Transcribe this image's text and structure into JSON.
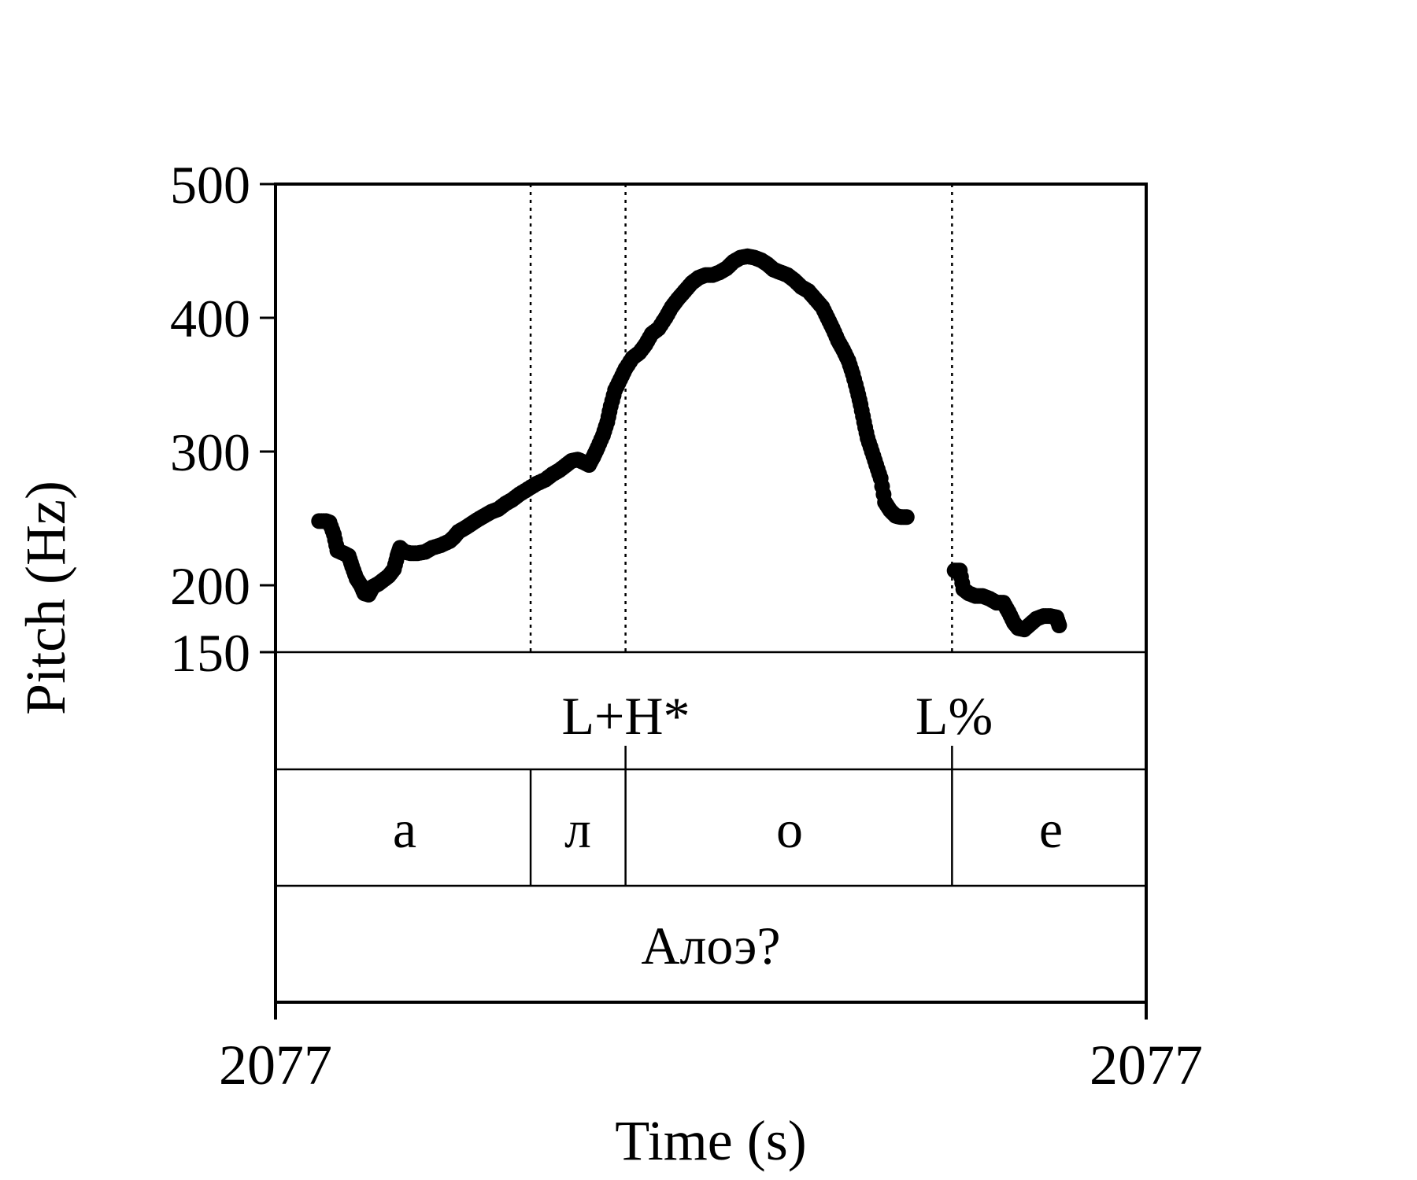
{
  "chart_data": {
    "type": "scatter",
    "ylabel": "Pitch (Hz)",
    "xlabel": "Time (s)",
    "y_ticks": [
      "500",
      "400",
      "300",
      "200",
      "150"
    ],
    "y_tick_values": [
      500,
      400,
      300,
      200,
      150
    ],
    "ylim": [
      150,
      500
    ],
    "x_tick_labels": [
      "2077",
      "2077"
    ],
    "xlim": [
      0,
      1
    ],
    "boundaries": [
      0.293,
      0.402,
      0.777
    ],
    "tones": [
      {
        "label": "L+H*",
        "t": 0.402
      },
      {
        "label": "L%",
        "t": 0.777
      }
    ],
    "segments": [
      {
        "label": "а",
        "start": 0.0,
        "end": 0.293
      },
      {
        "label": "л",
        "start": 0.293,
        "end": 0.402
      },
      {
        "label": "о",
        "start": 0.402,
        "end": 0.777
      },
      {
        "label": "е",
        "start": 0.777,
        "end": 1.0
      }
    ],
    "utterance": "Алоэ?",
    "pitch_series": [
      {
        "segment": [
          [
            0.05,
            248
          ],
          [
            0.058,
            248
          ],
          [
            0.062,
            247
          ],
          [
            0.067,
            238
          ],
          [
            0.071,
            226
          ],
          [
            0.078,
            224
          ],
          [
            0.084,
            222
          ],
          [
            0.088,
            214
          ],
          [
            0.093,
            205
          ],
          [
            0.098,
            200
          ],
          [
            0.102,
            194
          ],
          [
            0.107,
            193
          ],
          [
            0.112,
            199
          ],
          [
            0.118,
            201
          ],
          [
            0.124,
            204
          ],
          [
            0.13,
            207
          ],
          [
            0.136,
            212
          ],
          [
            0.14,
            222
          ],
          [
            0.143,
            228
          ],
          [
            0.148,
            225
          ],
          [
            0.155,
            224
          ],
          [
            0.163,
            224
          ],
          [
            0.172,
            225
          ],
          [
            0.18,
            228
          ],
          [
            0.19,
            230
          ],
          [
            0.2,
            233
          ],
          [
            0.205,
            236
          ],
          [
            0.21,
            240
          ],
          [
            0.218,
            243
          ],
          [
            0.225,
            246
          ],
          [
            0.232,
            249
          ],
          [
            0.24,
            252
          ],
          [
            0.248,
            255
          ],
          [
            0.256,
            257
          ],
          [
            0.264,
            261
          ],
          [
            0.272,
            264
          ],
          [
            0.28,
            268
          ],
          [
            0.29,
            272
          ],
          [
            0.3,
            276
          ],
          [
            0.31,
            279
          ],
          [
            0.318,
            283
          ],
          [
            0.326,
            286
          ],
          [
            0.334,
            290
          ],
          [
            0.34,
            293
          ],
          [
            0.347,
            294
          ],
          [
            0.354,
            292
          ],
          [
            0.36,
            290
          ],
          [
            0.365,
            296
          ],
          [
            0.37,
            303
          ],
          [
            0.376,
            312
          ],
          [
            0.381,
            322
          ],
          [
            0.385,
            334
          ],
          [
            0.39,
            346
          ],
          [
            0.396,
            354
          ],
          [
            0.402,
            362
          ],
          [
            0.41,
            370
          ],
          [
            0.418,
            374
          ],
          [
            0.425,
            380
          ],
          [
            0.432,
            388
          ],
          [
            0.44,
            392
          ],
          [
            0.448,
            400
          ],
          [
            0.455,
            408
          ],
          [
            0.462,
            414
          ],
          [
            0.47,
            420
          ],
          [
            0.478,
            426
          ],
          [
            0.486,
            430
          ],
          [
            0.494,
            432
          ],
          [
            0.502,
            432
          ],
          [
            0.51,
            434
          ],
          [
            0.518,
            437
          ],
          [
            0.526,
            442
          ],
          [
            0.534,
            445
          ],
          [
            0.542,
            446
          ],
          [
            0.55,
            445
          ],
          [
            0.558,
            443
          ],
          [
            0.565,
            440
          ],
          [
            0.572,
            436
          ],
          [
            0.58,
            434
          ],
          [
            0.588,
            432
          ],
          [
            0.596,
            428
          ],
          [
            0.604,
            423
          ],
          [
            0.612,
            420
          ],
          [
            0.62,
            414
          ],
          [
            0.628,
            408
          ],
          [
            0.634,
            400
          ],
          [
            0.64,
            392
          ],
          [
            0.646,
            383
          ],
          [
            0.652,
            376
          ],
          [
            0.658,
            368
          ],
          [
            0.663,
            358
          ],
          [
            0.668,
            346
          ],
          [
            0.672,
            335
          ],
          [
            0.676,
            322
          ],
          [
            0.68,
            310
          ],
          [
            0.685,
            300
          ],
          [
            0.69,
            290
          ],
          [
            0.695,
            280
          ],
          [
            0.7,
            262
          ],
          [
            0.706,
            256
          ],
          [
            0.712,
            252
          ],
          [
            0.718,
            251
          ],
          [
            0.725,
            251
          ]
        ]
      },
      {
        "segment": [
          [
            0.78,
            211
          ],
          [
            0.786,
            211
          ],
          [
            0.79,
            197
          ],
          [
            0.796,
            194
          ],
          [
            0.804,
            192
          ],
          [
            0.812,
            192
          ],
          [
            0.82,
            190
          ],
          [
            0.828,
            187
          ],
          [
            0.836,
            187
          ],
          [
            0.842,
            180
          ],
          [
            0.848,
            172
          ],
          [
            0.853,
            168
          ],
          [
            0.86,
            167
          ],
          [
            0.867,
            171
          ],
          [
            0.874,
            175
          ],
          [
            0.882,
            177
          ],
          [
            0.89,
            177
          ],
          [
            0.897,
            176
          ],
          [
            0.9,
            170
          ]
        ]
      }
    ]
  }
}
